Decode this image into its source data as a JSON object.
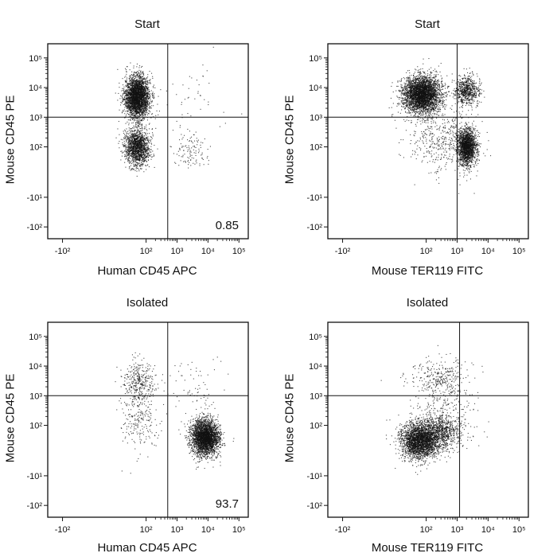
{
  "colors": {
    "dot": "#111111",
    "axis": "#111111",
    "background": "#ffffff"
  },
  "chart_data": [
    {
      "type": "scatter",
      "title": "Start",
      "xlabel": "Human CD45 APC",
      "ylabel": "Mouse CD45 PE",
      "scale": "biexponential",
      "x_tick_labels": [
        "-10²",
        "10²",
        "10³",
        "10⁴",
        "10⁵"
      ],
      "y_tick_labels": [
        "10⁵",
        "10⁴",
        "10³",
        "10²",
        "-10¹",
        "-10²"
      ],
      "gate": {
        "x": 500,
        "y": 1000
      },
      "quadrant_value": "0.85",
      "clusters": [
        {
          "x": 50,
          "y": 5000,
          "count": 3000,
          "spread": [
            0.2,
            0.35
          ]
        },
        {
          "x": 50,
          "y": 100,
          "count": 1500,
          "spread": [
            0.2,
            0.3
          ]
        },
        {
          "x": 2500,
          "y": 80,
          "count": 120,
          "spread": [
            0.3,
            0.35
          ]
        },
        {
          "x": 3000,
          "y": 5000,
          "count": 40,
          "spread": [
            0.6,
            0.5
          ]
        }
      ]
    },
    {
      "type": "scatter",
      "title": "Start",
      "xlabel": "Mouse TER119 FITC",
      "ylabel": "Mouse CD45 PE",
      "scale": "biexponential",
      "x_tick_labels": [
        "-10²",
        "10²",
        "10³",
        "10⁴",
        "10⁵"
      ],
      "y_tick_labels": [
        "10⁵",
        "10⁴",
        "10³",
        "10²",
        "-10¹",
        "-10²"
      ],
      "gate": {
        "x": 1000,
        "y": 1000
      },
      "quadrant_value": "",
      "clusters": [
        {
          "x": 70,
          "y": 6000,
          "count": 3500,
          "spread": [
            0.3,
            0.3
          ]
        },
        {
          "x": 2000,
          "y": 8000,
          "count": 700,
          "spread": [
            0.2,
            0.25
          ]
        },
        {
          "x": 2000,
          "y": 100,
          "count": 1800,
          "spread": [
            0.15,
            0.3
          ]
        },
        {
          "x": 300,
          "y": 200,
          "count": 500,
          "spread": [
            0.6,
            0.6
          ]
        }
      ]
    },
    {
      "type": "scatter",
      "title": "Isolated",
      "xlabel": "Human CD45 APC",
      "ylabel": "Mouse CD45 PE",
      "scale": "biexponential",
      "x_tick_labels": [
        "-10²",
        "10²",
        "10³",
        "10⁴",
        "10⁵"
      ],
      "y_tick_labels": [
        "10⁵",
        "10⁴",
        "10³",
        "10²",
        "-10¹",
        "-10²"
      ],
      "gate": {
        "x": 500,
        "y": 1000
      },
      "quadrant_value": "93.7",
      "clusters": [
        {
          "x": 8000,
          "y": 40,
          "count": 3000,
          "spread": [
            0.22,
            0.3
          ]
        },
        {
          "x": 60,
          "y": 3500,
          "count": 300,
          "spread": [
            0.25,
            0.35
          ]
        },
        {
          "x": 60,
          "y": 200,
          "count": 250,
          "spread": [
            0.3,
            0.6
          ]
        },
        {
          "x": 3000,
          "y": 1500,
          "count": 80,
          "spread": [
            0.5,
            0.6
          ]
        }
      ]
    },
    {
      "type": "scatter",
      "title": "Isolated",
      "xlabel": "Mouse TER119 FITC",
      "ylabel": "Mouse CD45 PE",
      "scale": "biexponential",
      "x_tick_labels": [
        "-10²",
        "10²",
        "10³",
        "10⁴",
        "10⁵"
      ],
      "y_tick_labels": [
        "10⁵",
        "10⁴",
        "10³",
        "10²",
        "-10¹",
        "-10²"
      ],
      "gate": {
        "x": 1200,
        "y": 1000
      },
      "quadrant_value": "",
      "clusters": [
        {
          "x": 60,
          "y": 30,
          "count": 2500,
          "spread": [
            0.3,
            0.3
          ]
        },
        {
          "x": 250,
          "y": 60,
          "count": 900,
          "spread": [
            0.35,
            0.3
          ]
        },
        {
          "x": 300,
          "y": 4000,
          "count": 300,
          "spread": [
            0.5,
            0.35
          ]
        },
        {
          "x": 300,
          "y": 300,
          "count": 250,
          "spread": [
            0.6,
            0.6
          ]
        }
      ]
    }
  ]
}
